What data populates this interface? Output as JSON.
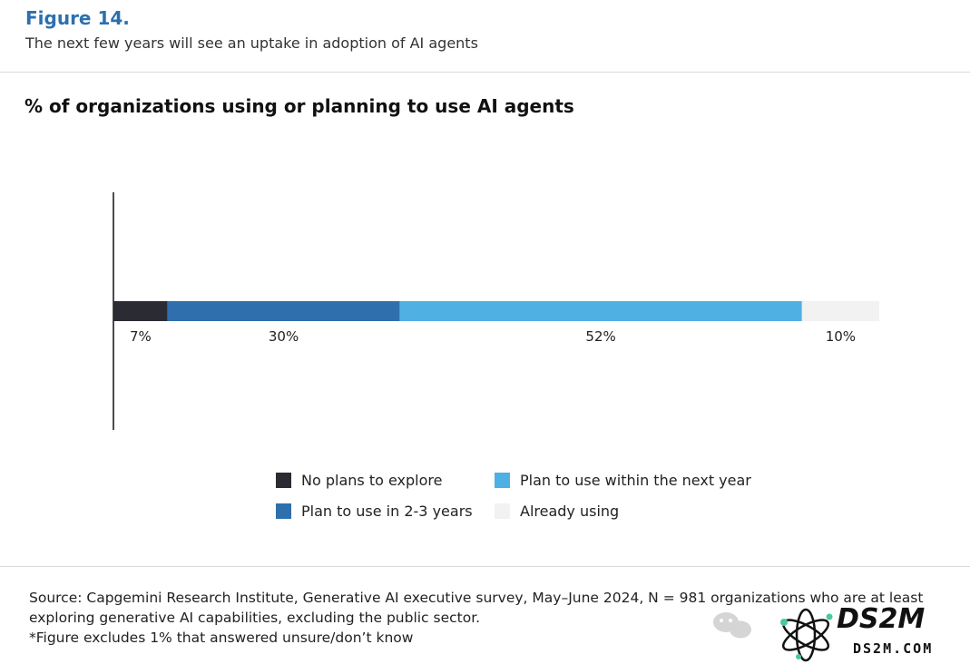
{
  "figure": {
    "label": "Figure 14.",
    "subtitle": "The next few years will see an uptake in adoption of AI agents"
  },
  "chart_data": {
    "type": "bar",
    "orientation": "horizontal-stacked",
    "title": "% of organizations using or planning to use AI agents",
    "xlim": [
      0,
      99
    ],
    "series": [
      {
        "name": "No plans to explore",
        "value": 7,
        "label": "7%",
        "color": "#2b2b33"
      },
      {
        "name": "Plan to use in 2-3 years",
        "value": 30,
        "label": "30%",
        "color": "#2f6fae"
      },
      {
        "name": "Plan to use within the next year",
        "value": 52,
        "label": "52%",
        "color": "#4fb0e3"
      },
      {
        "name": "Already using",
        "value": 10,
        "label": "10%",
        "color": "#f2f2f2"
      }
    ],
    "legend_position": "bottom"
  },
  "source": {
    "line1": "Source: Capgemini Research Institute, Generative AI executive survey, May–June 2024, N = 981 organizations who are at least",
    "line2": "exploring generative AI capabilities, excluding the public sector.",
    "line3": "*Figure excludes 1% that answered unsure/don’t know"
  },
  "watermark": {
    "brand": "DS2M",
    "site": "DS2M.COM",
    "icons": [
      "wechat-icon",
      "atom-logo-icon"
    ]
  }
}
